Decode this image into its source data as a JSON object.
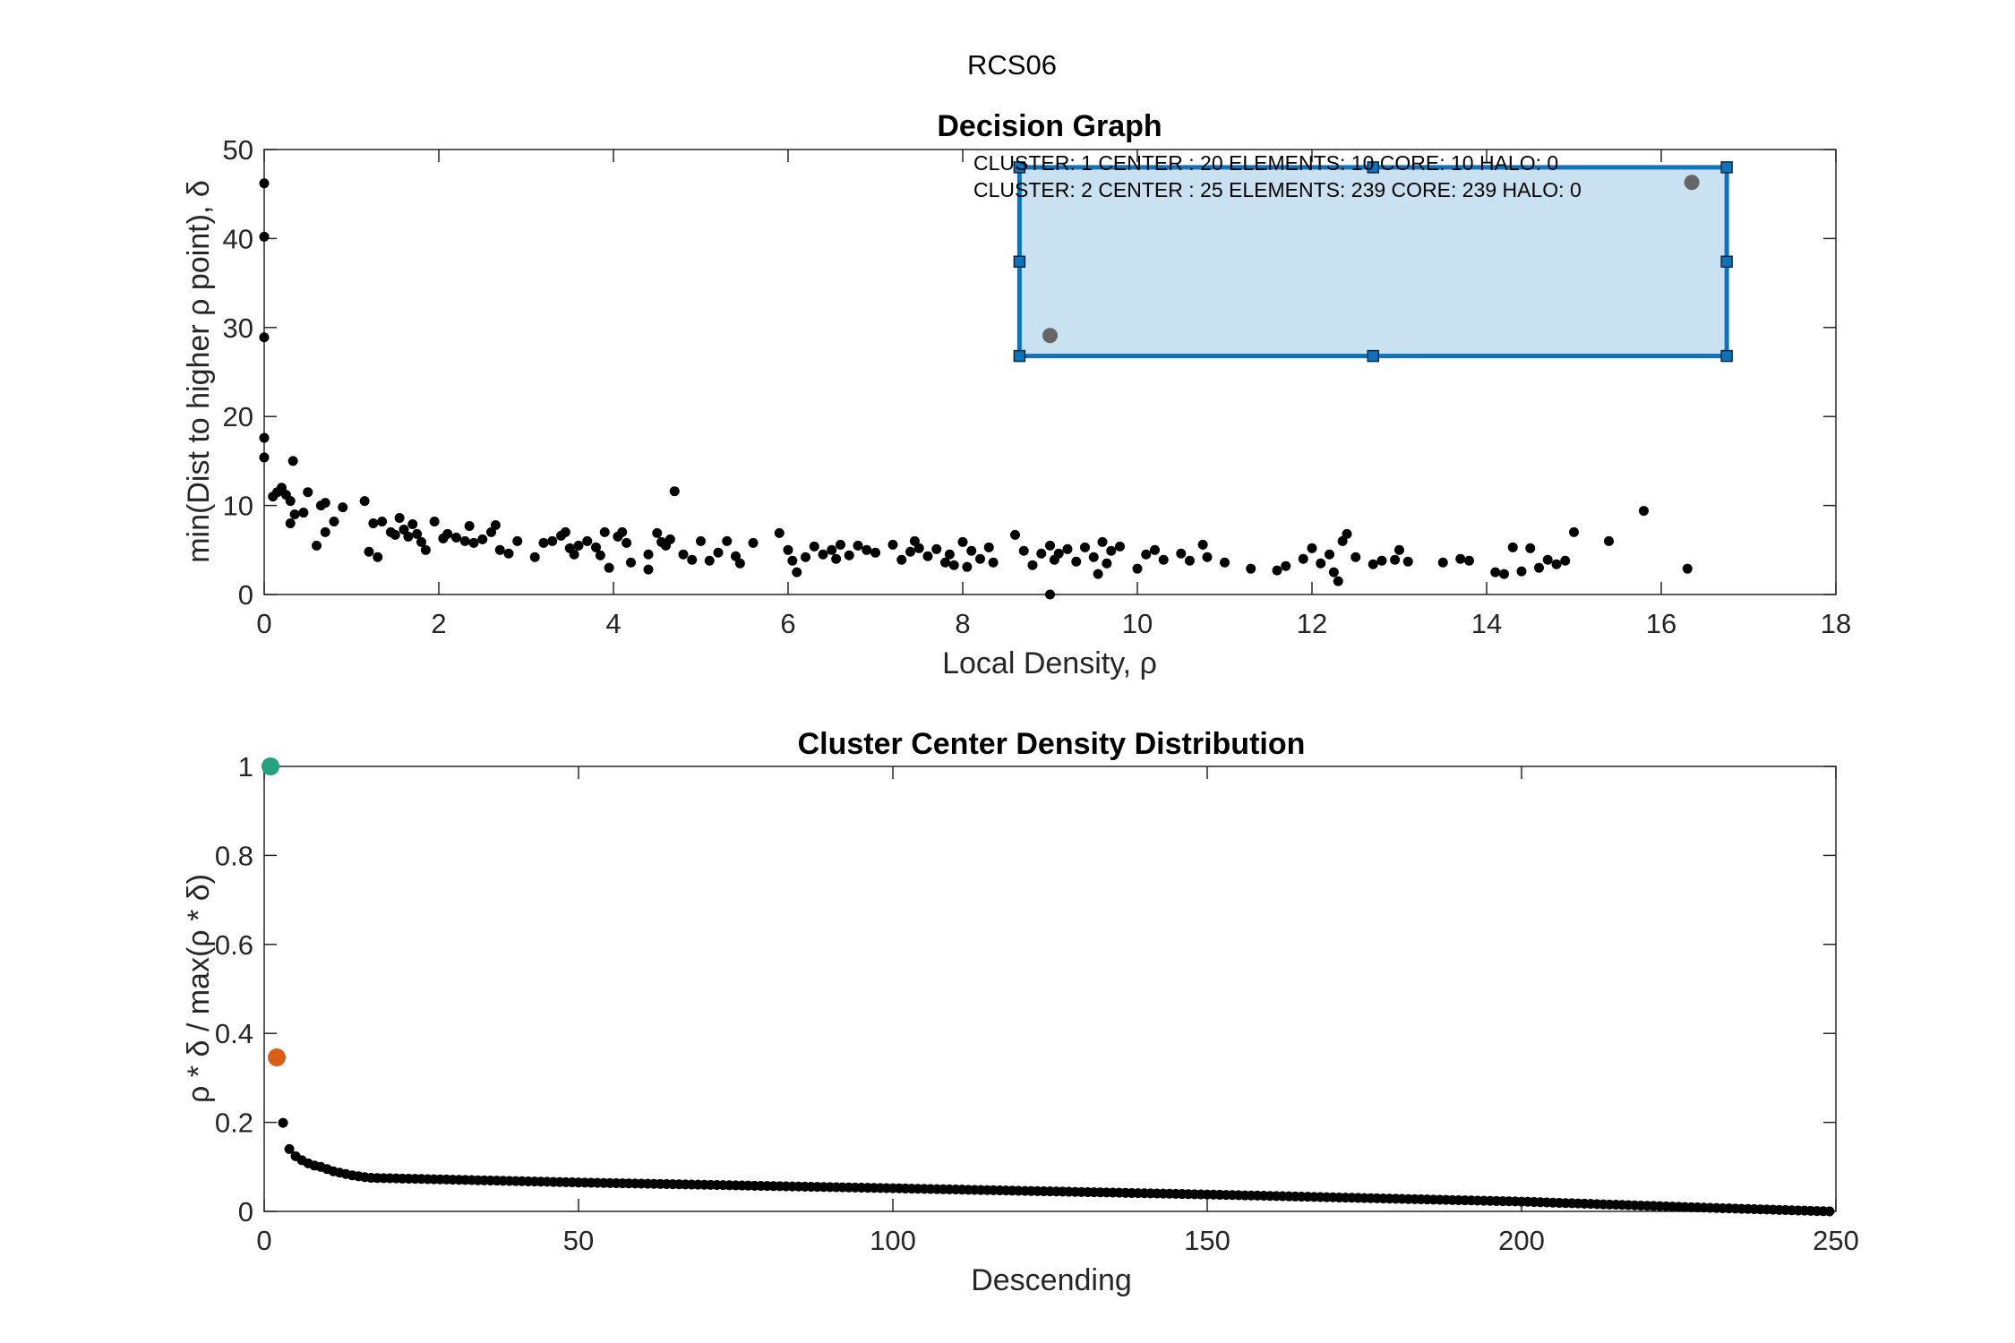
{
  "figure": {
    "suptitle": "RCS06"
  },
  "colors": {
    "point": "#000000",
    "selection_fill": "#c9e1f0",
    "selection_edge": "#0f72bd",
    "highlight_gray": "#666666",
    "center_1": "#24a082",
    "center_2": "#d95f19",
    "axis": "#262626"
  },
  "annotations": [
    "CLUSTER: 1 CENTER : 20 ELEMENTS: 10 CORE: 10 HALO: 0",
    "CLUSTER: 2 CENTER : 25 ELEMENTS: 239 CORE: 239 HALO: 0"
  ],
  "chart_data": [
    {
      "type": "scatter",
      "title": "Decision Graph",
      "xlabel": "Local Density, ρ",
      "ylabel": "min(Dist to higher ρ point), δ",
      "xlim": [
        0,
        18
      ],
      "ylim": [
        0,
        50
      ],
      "xticks": [
        "0",
        "2",
        "4",
        "6",
        "8",
        "10",
        "12",
        "14",
        "16",
        "18"
      ],
      "yticks": [
        "0",
        "10",
        "20",
        "30",
        "40",
        "50"
      ],
      "selection_box": {
        "x": [
          8.65,
          16.75
        ],
        "y": [
          26.8,
          48.0
        ]
      },
      "highlighted_points": [
        [
          9.0,
          29.1
        ],
        [
          16.35,
          46.3
        ]
      ],
      "points": [
        [
          0.0,
          46.2
        ],
        [
          0.0,
          40.2
        ],
        [
          0.0,
          28.9
        ],
        [
          0.0,
          17.6
        ],
        [
          0.0,
          15.4
        ],
        [
          0.1,
          11.0
        ],
        [
          0.15,
          11.5
        ],
        [
          0.2,
          12.0
        ],
        [
          0.25,
          11.2
        ],
        [
          0.3,
          10.5
        ],
        [
          0.35,
          9.0
        ],
        [
          0.3,
          8.0
        ],
        [
          0.33,
          15.0
        ],
        [
          0.45,
          9.2
        ],
        [
          0.5,
          11.5
        ],
        [
          0.6,
          5.5
        ],
        [
          0.65,
          10.0
        ],
        [
          0.7,
          10.3
        ],
        [
          0.7,
          7.0
        ],
        [
          0.8,
          8.2
        ],
        [
          0.9,
          9.8
        ],
        [
          1.15,
          10.5
        ],
        [
          1.2,
          4.8
        ],
        [
          1.25,
          8.0
        ],
        [
          1.3,
          4.2
        ],
        [
          1.35,
          8.2
        ],
        [
          1.45,
          7.0
        ],
        [
          1.5,
          6.7
        ],
        [
          1.55,
          8.6
        ],
        [
          1.6,
          7.3
        ],
        [
          1.65,
          6.5
        ],
        [
          1.7,
          7.9
        ],
        [
          1.75,
          6.8
        ],
        [
          1.8,
          5.9
        ],
        [
          1.85,
          5.0
        ],
        [
          1.95,
          8.2
        ],
        [
          2.05,
          6.3
        ],
        [
          2.1,
          6.8
        ],
        [
          2.2,
          6.4
        ],
        [
          2.3,
          6.0
        ],
        [
          2.35,
          7.7
        ],
        [
          2.4,
          5.8
        ],
        [
          2.5,
          6.2
        ],
        [
          2.6,
          7.0
        ],
        [
          2.65,
          7.8
        ],
        [
          2.7,
          5.0
        ],
        [
          2.8,
          4.6
        ],
        [
          2.9,
          6.0
        ],
        [
          3.1,
          4.2
        ],
        [
          3.2,
          5.8
        ],
        [
          3.3,
          6.0
        ],
        [
          3.4,
          6.6
        ],
        [
          3.45,
          7.0
        ],
        [
          3.5,
          5.2
        ],
        [
          3.55,
          4.5
        ],
        [
          3.6,
          5.5
        ],
        [
          3.7,
          6.0
        ],
        [
          3.8,
          5.3
        ],
        [
          3.85,
          4.4
        ],
        [
          3.9,
          7.0
        ],
        [
          3.95,
          3.0
        ],
        [
          4.05,
          6.5
        ],
        [
          4.1,
          7.0
        ],
        [
          4.15,
          5.8
        ],
        [
          4.2,
          3.6
        ],
        [
          4.4,
          4.5
        ],
        [
          4.4,
          2.8
        ],
        [
          4.5,
          6.9
        ],
        [
          4.55,
          5.9
        ],
        [
          4.6,
          5.5
        ],
        [
          4.65,
          6.2
        ],
        [
          4.7,
          11.6
        ],
        [
          4.8,
          4.5
        ],
        [
          4.9,
          3.9
        ],
        [
          5.0,
          6.0
        ],
        [
          5.1,
          3.8
        ],
        [
          5.2,
          4.7
        ],
        [
          5.3,
          6.0
        ],
        [
          5.4,
          4.3
        ],
        [
          5.45,
          3.5
        ],
        [
          5.6,
          5.8
        ],
        [
          5.9,
          6.9
        ],
        [
          6.0,
          5.0
        ],
        [
          6.05,
          3.8
        ],
        [
          6.1,
          2.5
        ],
        [
          6.2,
          4.2
        ],
        [
          6.3,
          5.4
        ],
        [
          6.4,
          4.5
        ],
        [
          6.5,
          5.0
        ],
        [
          6.55,
          4.0
        ],
        [
          6.6,
          5.6
        ],
        [
          6.7,
          4.4
        ],
        [
          6.8,
          5.5
        ],
        [
          6.9,
          5.0
        ],
        [
          7.0,
          4.7
        ],
        [
          7.2,
          5.6
        ],
        [
          7.3,
          3.9
        ],
        [
          7.4,
          4.8
        ],
        [
          7.45,
          6.0
        ],
        [
          7.5,
          5.2
        ],
        [
          7.6,
          4.3
        ],
        [
          7.7,
          5.1
        ],
        [
          7.8,
          3.6
        ],
        [
          7.85,
          4.5
        ],
        [
          7.9,
          3.3
        ],
        [
          8.0,
          5.9
        ],
        [
          8.05,
          3.1
        ],
        [
          8.1,
          4.9
        ],
        [
          8.2,
          4.0
        ],
        [
          8.3,
          5.3
        ],
        [
          8.35,
          3.6
        ],
        [
          8.6,
          6.7
        ],
        [
          8.7,
          4.9
        ],
        [
          8.8,
          3.3
        ],
        [
          8.9,
          4.6
        ],
        [
          9.0,
          5.5
        ],
        [
          9.0,
          0.0
        ],
        [
          9.05,
          3.9
        ],
        [
          9.1,
          4.6
        ],
        [
          9.2,
          5.1
        ],
        [
          9.3,
          3.7
        ],
        [
          9.4,
          5.3
        ],
        [
          9.5,
          4.2
        ],
        [
          9.55,
          2.3
        ],
        [
          9.6,
          5.9
        ],
        [
          9.65,
          3.5
        ],
        [
          9.7,
          4.9
        ],
        [
          9.8,
          5.4
        ],
        [
          10.0,
          2.9
        ],
        [
          10.1,
          4.5
        ],
        [
          10.2,
          5.0
        ],
        [
          10.3,
          3.9
        ],
        [
          10.5,
          4.6
        ],
        [
          10.6,
          3.8
        ],
        [
          10.75,
          5.6
        ],
        [
          10.8,
          4.2
        ],
        [
          11.0,
          3.6
        ],
        [
          11.3,
          2.9
        ],
        [
          11.6,
          2.7
        ],
        [
          11.7,
          3.2
        ],
        [
          11.9,
          4.0
        ],
        [
          12.0,
          5.2
        ],
        [
          12.1,
          3.5
        ],
        [
          12.2,
          4.5
        ],
        [
          12.25,
          2.5
        ],
        [
          12.3,
          1.5
        ],
        [
          12.4,
          6.8
        ],
        [
          12.35,
          6.0
        ],
        [
          12.5,
          4.2
        ],
        [
          12.7,
          3.4
        ],
        [
          12.8,
          3.8
        ],
        [
          12.95,
          3.9
        ],
        [
          13.0,
          5.0
        ],
        [
          13.1,
          3.7
        ],
        [
          13.5,
          3.6
        ],
        [
          13.7,
          4.0
        ],
        [
          13.8,
          3.8
        ],
        [
          14.1,
          2.5
        ],
        [
          14.2,
          2.3
        ],
        [
          14.3,
          5.3
        ],
        [
          14.4,
          2.6
        ],
        [
          14.5,
          5.2
        ],
        [
          14.6,
          3.0
        ],
        [
          14.7,
          3.9
        ],
        [
          14.8,
          3.4
        ],
        [
          14.9,
          3.8
        ],
        [
          15.0,
          7.0
        ],
        [
          15.4,
          6.0
        ],
        [
          15.8,
          9.4
        ],
        [
          16.3,
          2.9
        ]
      ]
    },
    {
      "type": "scatter",
      "title": "Cluster Center Density Distribution",
      "xlabel": "Descending",
      "ylabel": "ρ * δ / max(ρ * δ)",
      "xlim": [
        0,
        250
      ],
      "ylim": [
        0,
        1
      ],
      "xticks": [
        "0",
        "50",
        "100",
        "150",
        "200",
        "250"
      ],
      "yticks": [
        "0",
        "0.2",
        "0.4",
        "0.6",
        "0.8",
        "1"
      ],
      "n_points": 249,
      "highlighted_points": [
        [
          1,
          1.0
        ],
        [
          2,
          0.346
        ]
      ],
      "leading_values": [
        0.199,
        0.14,
        0.124,
        0.115,
        0.108,
        0.103,
        0.1,
        0.095,
        0.09,
        0.087,
        0.084,
        0.081,
        0.079,
        0.077
      ],
      "trend_points": [
        [
          15,
          0.076
        ],
        [
          50,
          0.065
        ],
        [
          100,
          0.052
        ],
        [
          150,
          0.038
        ],
        [
          200,
          0.022
        ],
        [
          230,
          0.008
        ],
        [
          249,
          0.0
        ]
      ]
    }
  ]
}
